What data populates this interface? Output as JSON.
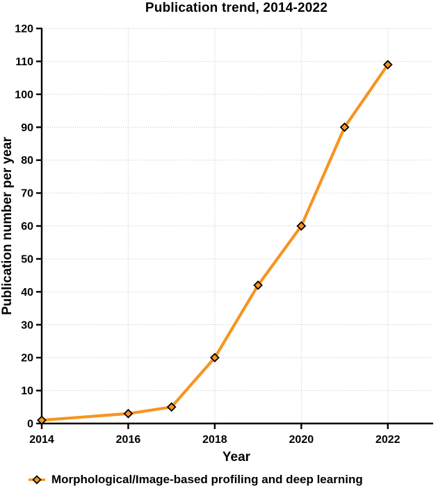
{
  "chart_data": {
    "type": "line",
    "title": "Publication trend, 2014-2022",
    "xlabel": "Year",
    "ylabel": "Publication number per year",
    "x": [
      2014,
      2016,
      2017,
      2018,
      2019,
      2020,
      2021,
      2022
    ],
    "series": [
      {
        "name": "Morphological/Image-based profiling and deep learning",
        "values": [
          1,
          3,
          5,
          20,
          42,
          60,
          90,
          109
        ],
        "color": "#F7941E",
        "marker": "diamond"
      }
    ],
    "xlim": [
      2014,
      2023
    ],
    "ylim": [
      0,
      120
    ],
    "x_ticks": [
      2014,
      2016,
      2018,
      2020,
      2022
    ],
    "x_gridlines": [
      2016,
      2018,
      2020,
      2022
    ],
    "y_tick_step": 10,
    "grid": true,
    "legend_position": "bottom-left"
  },
  "colors": {
    "line": "#F7941E",
    "marker_fill": "#F7941E",
    "marker_stroke": "#000000",
    "grid": "#C2C2C2",
    "axis": "#000000",
    "text": "#000000",
    "background": "#FFFFFF"
  }
}
